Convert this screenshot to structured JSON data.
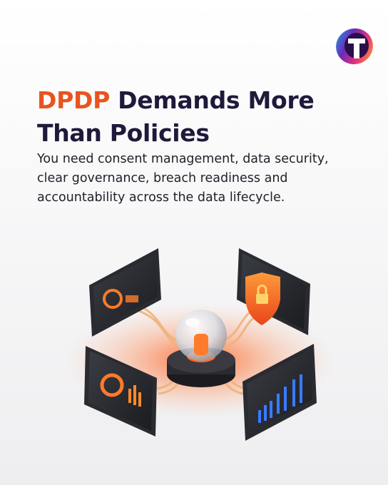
{
  "headline": {
    "highlight": "DPDP",
    "lines": [
      "Demands More",
      "Than Policies"
    ]
  },
  "body": {
    "lines": [
      "You need consent management, data security,",
      "clear governance, breach readiness and",
      "accountability across the data lifecycle."
    ]
  }
}
